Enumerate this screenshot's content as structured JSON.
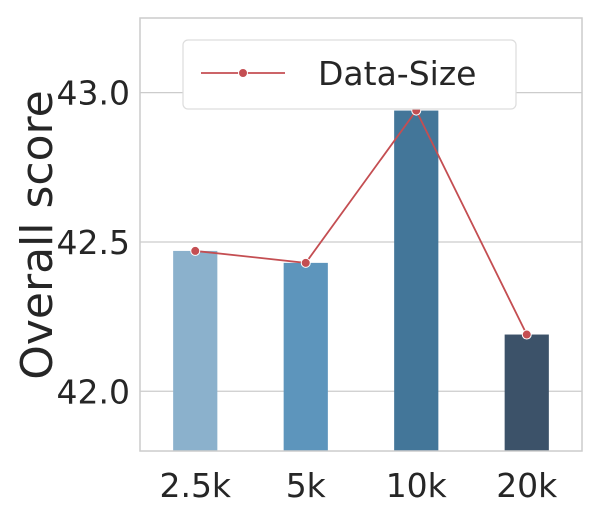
{
  "chart_data": {
    "type": "bar",
    "categories": [
      "2.5k",
      "5k",
      "10k",
      "20k"
    ],
    "values": [
      42.47,
      42.43,
      42.94,
      42.19
    ],
    "bar_colors": [
      "#8bb1cc",
      "#5d95bc",
      "#437699",
      "#3c5269"
    ],
    "series": [
      {
        "name": "Data-Size",
        "type": "line",
        "values": [
          42.47,
          42.43,
          42.94,
          42.19
        ],
        "color": "#c44e52"
      }
    ],
    "title": "",
    "xlabel": "",
    "ylabel": "Overall score",
    "ylim": [
      41.8,
      43.25
    ],
    "yticks": [
      "42.0",
      "42.5",
      "43.0"
    ],
    "grid": true,
    "legend_position": "top"
  }
}
